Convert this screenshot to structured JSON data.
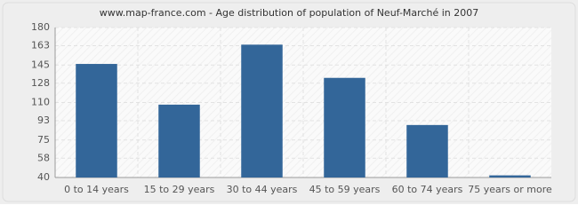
{
  "chart_data": {
    "type": "bar",
    "title": "www.map-france.com - Age distribution of population of Neuf-Marché in 2007",
    "categories": [
      "0 to 14 years",
      "15 to 29 years",
      "30 to 44 years",
      "45 to 59 years",
      "60 to 74 years",
      "75 years or more"
    ],
    "values": [
      146,
      108,
      164,
      133,
      89,
      42
    ],
    "color": "#336699",
    "ylim": [
      40,
      180
    ],
    "yticks": [
      40,
      58,
      75,
      93,
      110,
      128,
      145,
      163,
      180
    ],
    "grid": true
  }
}
